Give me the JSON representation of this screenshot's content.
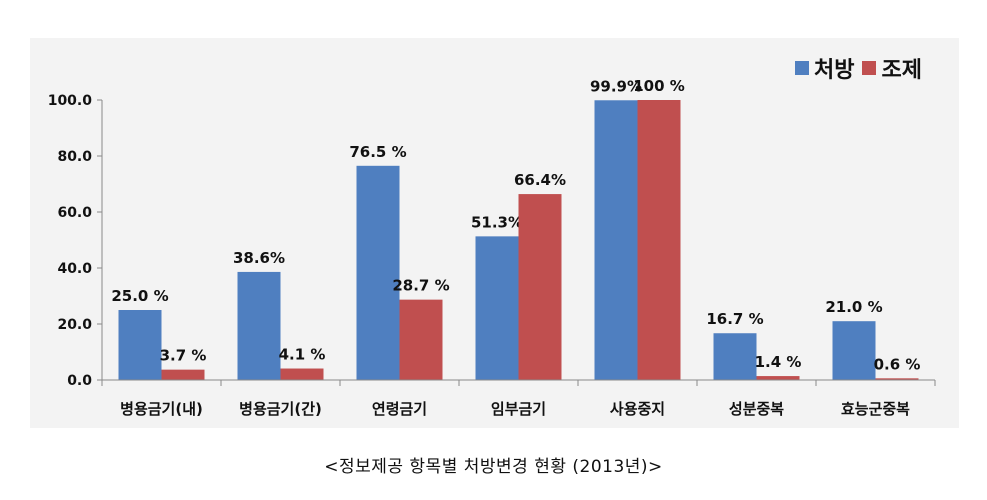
{
  "caption": "<정보제공 항목별 처방변경 현황 (2013년)>",
  "colors": {
    "series_1": "#4f7fc0",
    "series_2": "#c04f4f",
    "background": "#f3f3f3",
    "axis": "#8a8a8a"
  },
  "chart_data": {
    "type": "bar",
    "categories": [
      "병용금기(내)",
      "병용금기(간)",
      "연령금기",
      "임부금기",
      "사용중지",
      "성분중복",
      "효능군중복"
    ],
    "series": [
      {
        "name": "처방",
        "values": [
          25.0,
          38.6,
          76.5,
          51.3,
          99.9,
          16.7,
          21.0
        ],
        "labels": [
          "25.0 %",
          "38.6%",
          "76.5 %",
          "51.3%",
          "99.9%",
          "16.7 %",
          "21.0 %"
        ]
      },
      {
        "name": "조제",
        "values": [
          3.7,
          4.1,
          28.7,
          66.4,
          100,
          1.4,
          0.6
        ],
        "labels": [
          "3.7 %",
          "4.1 %",
          "28.7 %",
          "66.4%",
          "100 %",
          "1.4 %",
          "0.6 %"
        ]
      }
    ],
    "yticks": [
      "0.0",
      "20.0",
      "40.0",
      "60.0",
      "80.0",
      "100.0"
    ],
    "ylim": [
      0,
      100
    ],
    "grid": false,
    "legend": "top-right"
  }
}
